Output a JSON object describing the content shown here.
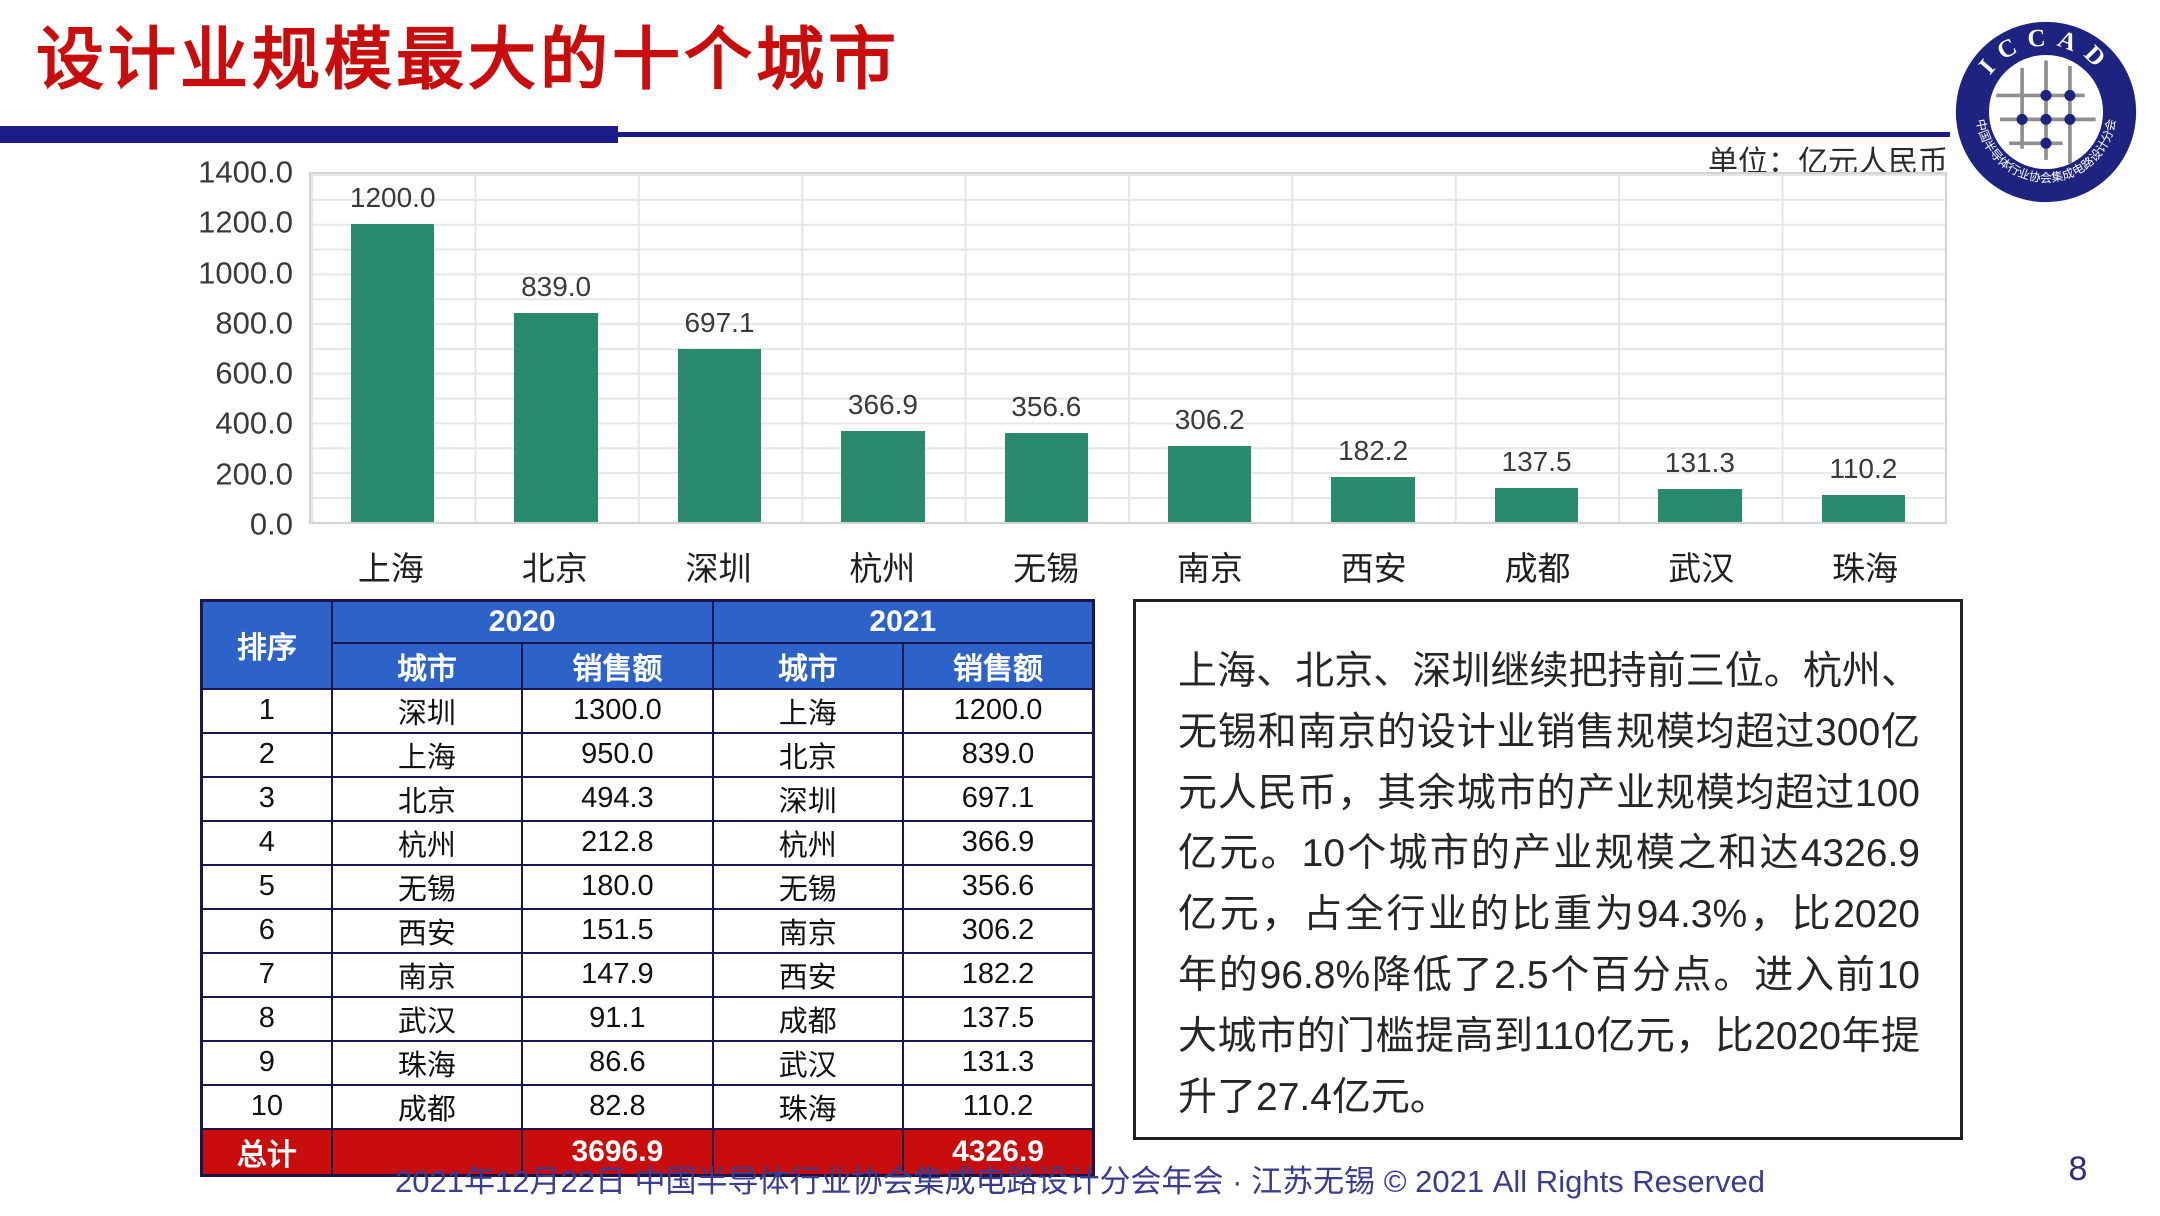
{
  "slide": {
    "title": "设计业规模最大的十个城市",
    "unit_label": "单位：亿元人民币",
    "footer": "2021年12月22日 中国半导体行业协会集成电路设计分会年会 · 江苏无锡 © 2021 All Rights Reserved",
    "page_number": "8"
  },
  "logo": {
    "top_text": "ICCAD",
    "bottom_text": "中国半导体行业协会集成电路设计分会"
  },
  "chart_data": {
    "type": "bar",
    "title": "",
    "xlabel": "",
    "ylabel": "",
    "unit": "亿元人民币",
    "categories": [
      "上海",
      "北京",
      "深圳",
      "杭州",
      "无锡",
      "南京",
      "西安",
      "成都",
      "武汉",
      "珠海"
    ],
    "values": [
      1200.0,
      839.0,
      697.1,
      366.9,
      356.6,
      306.2,
      182.2,
      137.5,
      131.3,
      110.2
    ],
    "bar_labels": [
      "1200.0",
      "839.0",
      "697.1",
      "366.9",
      "356.6",
      "306.2",
      "182.2",
      "137.5",
      "131.3",
      "110.2"
    ],
    "ylim": [
      0,
      1400
    ],
    "yticks": [
      "0.0",
      "200.0",
      "400.0",
      "600.0",
      "800.0",
      "1000.0",
      "1200.0",
      "1400.0"
    ],
    "grid": true,
    "legend_position": "none"
  },
  "table": {
    "rank_header": "排序",
    "year_headers": [
      "2020",
      "2021"
    ],
    "sub_headers": [
      "城市",
      "销售额",
      "城市",
      "销售额"
    ],
    "rows": [
      [
        "1",
        "深圳",
        "1300.0",
        "上海",
        "1200.0"
      ],
      [
        "2",
        "上海",
        "950.0",
        "北京",
        "839.0"
      ],
      [
        "3",
        "北京",
        "494.3",
        "深圳",
        "697.1"
      ],
      [
        "4",
        "杭州",
        "212.8",
        "杭州",
        "366.9"
      ],
      [
        "5",
        "无锡",
        "180.0",
        "无锡",
        "356.6"
      ],
      [
        "6",
        "西安",
        "151.5",
        "南京",
        "306.2"
      ],
      [
        "7",
        "南京",
        "147.9",
        "西安",
        "182.2"
      ],
      [
        "8",
        "武汉",
        "91.1",
        "成都",
        "137.5"
      ],
      [
        "9",
        "珠海",
        "86.6",
        "武汉",
        "131.3"
      ],
      [
        "10",
        "成都",
        "82.8",
        "珠海",
        "110.2"
      ]
    ],
    "total_row": {
      "label": "总计",
      "sales_2020": "3696.9",
      "sales_2021": "4326.9"
    }
  },
  "commentary": {
    "text": "上海、北京、深圳继续把持前三位。杭州、无锡和南京的设计业销售规模均超过300亿元人民币，其余城市的产业规模均超过100亿元。10个城市的产业规模之和达4326.9亿元，占全行业的比重为94.3%，比2020年的96.8%降低了2.5个百分点。进入前10大城市的门槛提高到110亿元，比2020年提升了27.4亿元。"
  },
  "colors": {
    "title_red": "#c90c0c",
    "navy": "#1b1b8a",
    "bar_green": "#2a8a6e",
    "table_header_blue": "#2d63c8",
    "table_border": "#17174d",
    "total_row_red": "#c90c0c",
    "footer_blue": "#3b3b8f",
    "grid_gray": "#e6e6e6"
  }
}
